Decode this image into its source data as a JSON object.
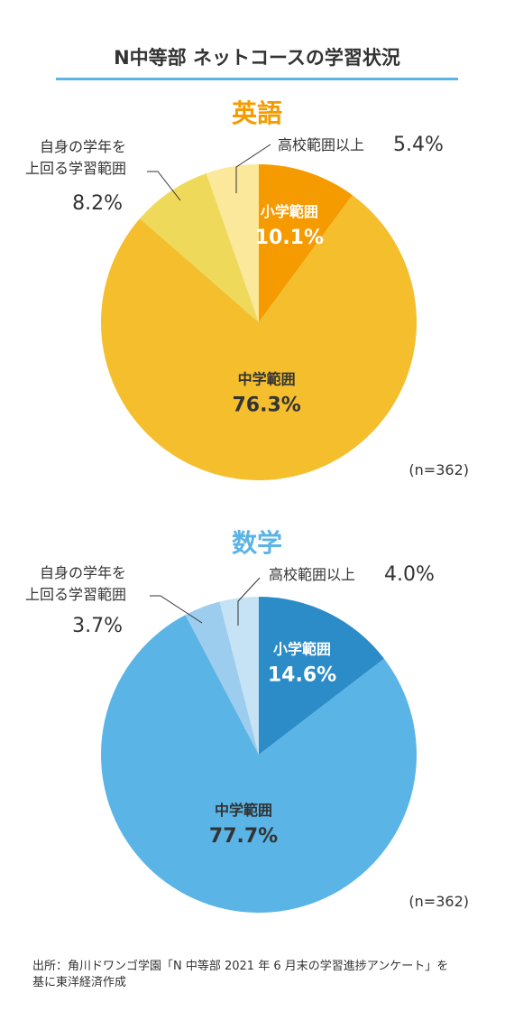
{
  "title": "N中等部 ネットコースの学習状況",
  "source_lines": [
    "出所：角川ドワンゴ学園「N 中等部 2021 年 6 月末の学習進捗アンケート」を",
    "基に東洋経済作成"
  ],
  "chart_data": [
    {
      "type": "pie",
      "title": "英語",
      "note": "(n=362)",
      "slices": [
        {
          "label": "小学範囲",
          "value": 10.1,
          "display": "10.1%",
          "color": "#f59b00"
        },
        {
          "label": "中学範囲",
          "value": 76.3,
          "display": "76.3%",
          "color": "#f4be2d"
        },
        {
          "label": "自身の学年を上回る学習範囲",
          "label_lines": [
            "自身の学年を",
            "上回る学習範囲"
          ],
          "value": 8.2,
          "display": "8.2%",
          "color": "#efd95a"
        },
        {
          "label": "高校範囲以上",
          "value": 5.4,
          "display": "5.4%",
          "color": "#fbe89a"
        }
      ]
    },
    {
      "type": "pie",
      "title": "数学",
      "note": "(n=362)",
      "slices": [
        {
          "label": "小学範囲",
          "value": 14.6,
          "display": "14.6%",
          "color": "#2b8cc8"
        },
        {
          "label": "中学範囲",
          "value": 77.7,
          "display": "77.7%",
          "color": "#5ab4e6"
        },
        {
          "label": "自身の学年を上回る学習範囲",
          "label_lines": [
            "自身の学年を",
            "上回る学習範囲"
          ],
          "value": 3.7,
          "display": "3.7%",
          "color": "#9ccdee"
        },
        {
          "label": "高校範囲以上",
          "value": 4.0,
          "display": "4.0%",
          "color": "#c5e3f4"
        }
      ]
    }
  ]
}
